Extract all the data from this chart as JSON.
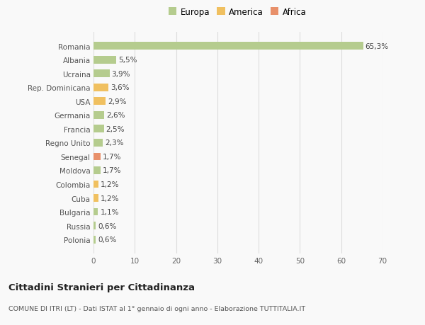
{
  "categories": [
    "Polonia",
    "Russia",
    "Bulgaria",
    "Cuba",
    "Colombia",
    "Moldova",
    "Senegal",
    "Regno Unito",
    "Francia",
    "Germania",
    "USA",
    "Rep. Dominicana",
    "Ucraina",
    "Albania",
    "Romania"
  ],
  "values": [
    0.6,
    0.6,
    1.1,
    1.2,
    1.2,
    1.7,
    1.7,
    2.3,
    2.5,
    2.6,
    2.9,
    3.6,
    3.9,
    5.5,
    65.3
  ],
  "colors": [
    "#b5cc8e",
    "#b5cc8e",
    "#b5cc8e",
    "#f0c060",
    "#f0c060",
    "#b5cc8e",
    "#e8906a",
    "#b5cc8e",
    "#b5cc8e",
    "#b5cc8e",
    "#f0c060",
    "#f0c060",
    "#b5cc8e",
    "#b5cc8e",
    "#b5cc8e"
  ],
  "labels": [
    "0,6%",
    "0,6%",
    "1,1%",
    "1,2%",
    "1,2%",
    "1,7%",
    "1,7%",
    "2,3%",
    "2,5%",
    "2,6%",
    "2,9%",
    "3,6%",
    "3,9%",
    "5,5%",
    "65,3%"
  ],
  "xlim": [
    0,
    70
  ],
  "xticks": [
    0,
    10,
    20,
    30,
    40,
    50,
    60,
    70
  ],
  "legend_labels": [
    "Europa",
    "America",
    "Africa"
  ],
  "legend_colors": [
    "#b5cc8e",
    "#f0c060",
    "#e8906a"
  ],
  "title": "Cittadini Stranieri per Cittadinanza",
  "subtitle": "COMUNE DI ITRI (LT) - Dati ISTAT al 1° gennaio di ogni anno - Elaborazione TUTTITALIA.IT",
  "bg_color": "#f9f9f9",
  "grid_color": "#dddddd",
  "bar_height": 0.55,
  "label_fontsize": 7.5,
  "tick_fontsize": 7.5,
  "legend_fontsize": 8.5
}
